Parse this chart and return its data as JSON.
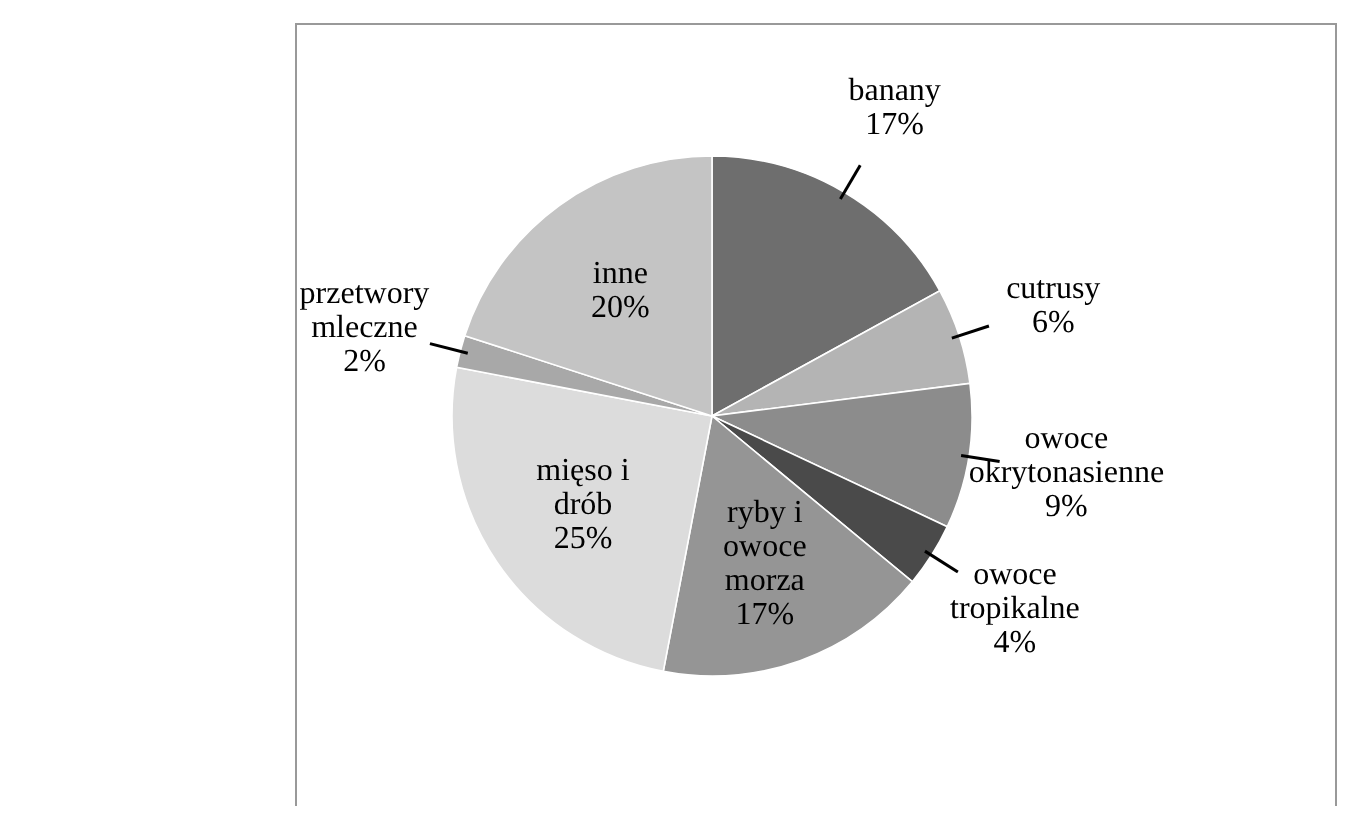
{
  "chart_data": {
    "type": "pie",
    "categories": [
      "banany",
      "cutrusy",
      "owoce okrytonasienne",
      "owoce tropikalne",
      "ryby i owoce morza",
      "mięso i drób",
      "przetwory mleczne",
      "inne"
    ],
    "values": [
      17,
      6,
      9,
      4,
      17,
      25,
      2,
      20
    ],
    "value_labels": [
      "17%",
      "6%",
      "9%",
      "4%",
      "17%",
      "25%",
      "2%",
      "20%"
    ],
    "colors": [
      "#6e6e6e",
      "#b4b4b4",
      "#8c8c8c",
      "#4a4a4a",
      "#959595",
      "#dcdcdc",
      "#a8a8a8",
      "#c4c4c4"
    ]
  }
}
